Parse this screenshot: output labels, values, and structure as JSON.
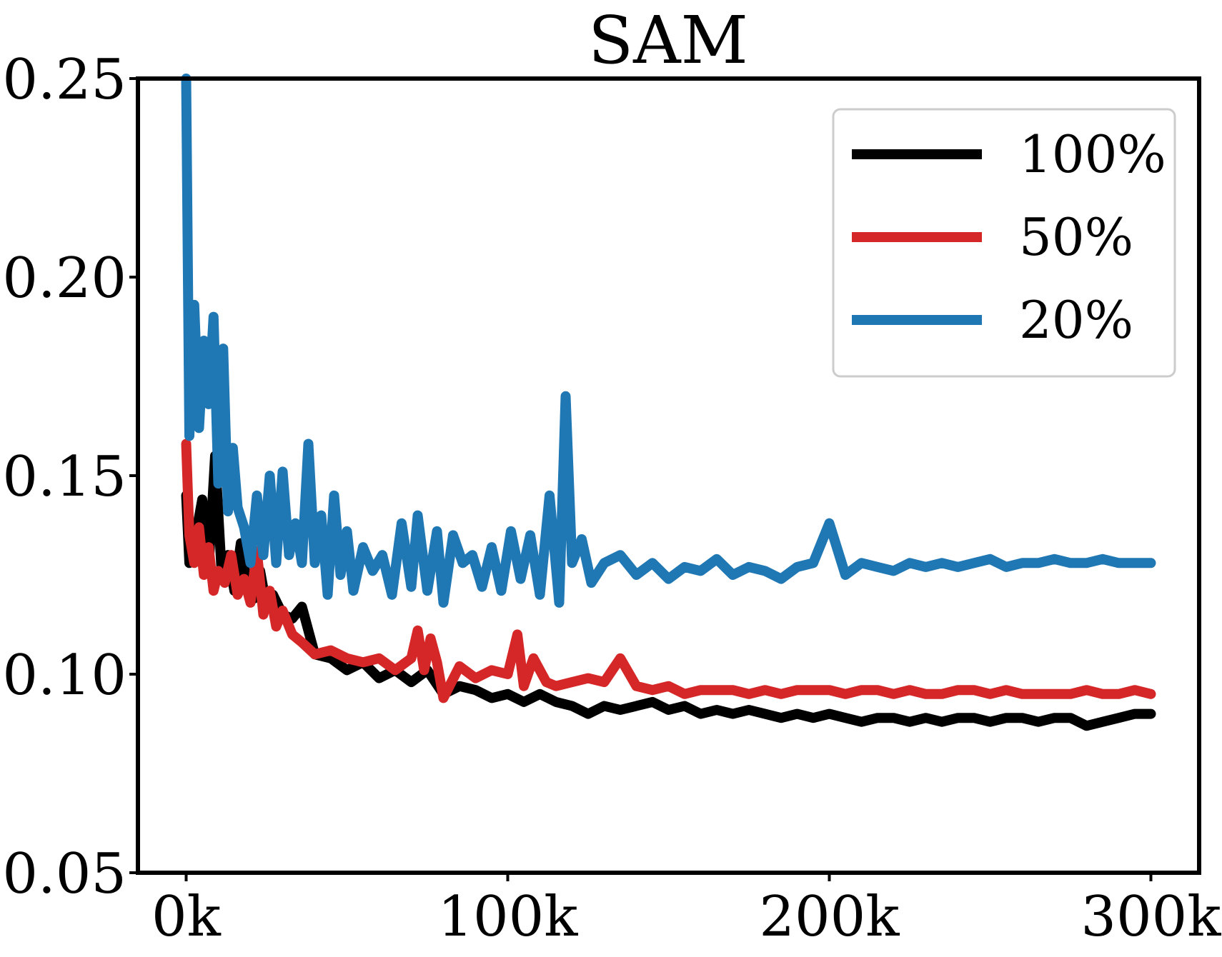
{
  "chart_data": {
    "type": "line",
    "title": "SAM",
    "xlabel": "",
    "ylabel": "",
    "xlim": [
      -15000,
      315000
    ],
    "ylim": [
      0.05,
      0.25
    ],
    "x_ticks": [
      0,
      100000,
      200000,
      300000
    ],
    "x_tick_labels": [
      "0k",
      "100k",
      "200k",
      "300k"
    ],
    "y_ticks": [
      0.05,
      0.1,
      0.15,
      0.2,
      0.25
    ],
    "y_tick_labels": [
      "0.05",
      "0.10",
      "0.15",
      "0.20",
      "0.25"
    ],
    "grid": false,
    "legend_position": "top-right",
    "series": [
      {
        "name": "100%",
        "color": "#000000",
        "x": [
          0,
          1000,
          3000,
          5000,
          7000,
          9000,
          11000,
          13000,
          15000,
          17000,
          19000,
          21000,
          23000,
          25000,
          27000,
          30000,
          33000,
          36000,
          40000,
          45000,
          50000,
          55000,
          60000,
          65000,
          70000,
          75000,
          80000,
          85000,
          90000,
          95000,
          100000,
          105000,
          110000,
          115000,
          120000,
          125000,
          130000,
          135000,
          140000,
          145000,
          150000,
          155000,
          160000,
          165000,
          170000,
          175000,
          180000,
          185000,
          190000,
          195000,
          200000,
          205000,
          210000,
          215000,
          220000,
          225000,
          230000,
          235000,
          240000,
          245000,
          250000,
          255000,
          260000,
          265000,
          270000,
          275000,
          280000,
          285000,
          290000,
          295000,
          300000
        ],
        "values": [
          0.145,
          0.128,
          0.135,
          0.144,
          0.127,
          0.155,
          0.126,
          0.13,
          0.121,
          0.133,
          0.122,
          0.119,
          0.126,
          0.117,
          0.12,
          0.115,
          0.114,
          0.117,
          0.105,
          0.104,
          0.101,
          0.103,
          0.099,
          0.101,
          0.098,
          0.101,
          0.095,
          0.097,
          0.096,
          0.094,
          0.095,
          0.093,
          0.095,
          0.093,
          0.092,
          0.09,
          0.092,
          0.091,
          0.092,
          0.093,
          0.091,
          0.092,
          0.09,
          0.091,
          0.09,
          0.091,
          0.09,
          0.089,
          0.09,
          0.089,
          0.09,
          0.089,
          0.088,
          0.089,
          0.089,
          0.088,
          0.089,
          0.088,
          0.089,
          0.089,
          0.088,
          0.089,
          0.089,
          0.088,
          0.089,
          0.089,
          0.087,
          0.088,
          0.089,
          0.09,
          0.09
        ]
      },
      {
        "name": "50%",
        "color": "#d62728",
        "x": [
          0,
          1000,
          2500,
          4000,
          5500,
          7000,
          8500,
          10000,
          12000,
          14000,
          16000,
          18000,
          20000,
          22000,
          24000,
          26000,
          28000,
          30000,
          33000,
          36000,
          40000,
          45000,
          50000,
          55000,
          60000,
          65000,
          70000,
          72000,
          74000,
          76000,
          78000,
          80000,
          85000,
          90000,
          95000,
          100000,
          103000,
          105000,
          108000,
          112000,
          115000,
          120000,
          125000,
          130000,
          135000,
          140000,
          145000,
          150000,
          155000,
          160000,
          165000,
          170000,
          175000,
          180000,
          185000,
          190000,
          195000,
          200000,
          205000,
          210000,
          215000,
          220000,
          225000,
          230000,
          235000,
          240000,
          245000,
          250000,
          255000,
          260000,
          265000,
          270000,
          275000,
          280000,
          285000,
          290000,
          295000,
          300000
        ],
        "values": [
          0.158,
          0.135,
          0.128,
          0.137,
          0.125,
          0.132,
          0.121,
          0.126,
          0.123,
          0.13,
          0.12,
          0.124,
          0.118,
          0.131,
          0.115,
          0.121,
          0.112,
          0.116,
          0.11,
          0.108,
          0.105,
          0.106,
          0.104,
          0.103,
          0.104,
          0.101,
          0.104,
          0.111,
          0.101,
          0.109,
          0.103,
          0.094,
          0.102,
          0.099,
          0.101,
          0.1,
          0.11,
          0.097,
          0.104,
          0.098,
          0.097,
          0.098,
          0.099,
          0.098,
          0.104,
          0.097,
          0.096,
          0.097,
          0.095,
          0.096,
          0.096,
          0.096,
          0.095,
          0.096,
          0.095,
          0.096,
          0.096,
          0.096,
          0.095,
          0.096,
          0.096,
          0.095,
          0.096,
          0.095,
          0.095,
          0.096,
          0.096,
          0.095,
          0.096,
          0.095,
          0.095,
          0.095,
          0.095,
          0.096,
          0.095,
          0.095,
          0.096,
          0.095
        ]
      },
      {
        "name": "20%",
        "color": "#1f77b4",
        "x": [
          0,
          1000,
          2500,
          4000,
          5500,
          7000,
          8500,
          10000,
          11500,
          13000,
          14500,
          16000,
          18000,
          20000,
          22000,
          24000,
          26000,
          28000,
          30000,
          32000,
          34000,
          36000,
          38000,
          40000,
          42000,
          44000,
          46000,
          48000,
          50000,
          52000,
          55000,
          58000,
          61000,
          64000,
          67000,
          70000,
          72000,
          75000,
          78000,
          80000,
          83000,
          86000,
          89000,
          92000,
          95000,
          98000,
          101000,
          104000,
          107000,
          110000,
          113000,
          116000,
          118000,
          120000,
          123000,
          126000,
          130000,
          135000,
          140000,
          145000,
          150000,
          155000,
          160000,
          165000,
          170000,
          175000,
          180000,
          185000,
          190000,
          195000,
          200000,
          205000,
          210000,
          215000,
          220000,
          225000,
          230000,
          235000,
          240000,
          245000,
          250000,
          255000,
          260000,
          265000,
          270000,
          275000,
          280000,
          285000,
          290000,
          295000,
          300000
        ],
        "values": [
          0.25,
          0.16,
          0.193,
          0.162,
          0.184,
          0.168,
          0.19,
          0.148,
          0.182,
          0.141,
          0.157,
          0.142,
          0.137,
          0.128,
          0.145,
          0.13,
          0.15,
          0.128,
          0.151,
          0.13,
          0.138,
          0.128,
          0.158,
          0.128,
          0.14,
          0.12,
          0.145,
          0.125,
          0.136,
          0.121,
          0.132,
          0.126,
          0.13,
          0.12,
          0.138,
          0.122,
          0.14,
          0.121,
          0.136,
          0.118,
          0.135,
          0.128,
          0.13,
          0.122,
          0.132,
          0.121,
          0.136,
          0.124,
          0.135,
          0.12,
          0.145,
          0.118,
          0.17,
          0.128,
          0.134,
          0.123,
          0.128,
          0.13,
          0.125,
          0.128,
          0.124,
          0.127,
          0.126,
          0.129,
          0.125,
          0.127,
          0.126,
          0.124,
          0.127,
          0.128,
          0.138,
          0.125,
          0.128,
          0.127,
          0.126,
          0.128,
          0.127,
          0.128,
          0.127,
          0.128,
          0.129,
          0.127,
          0.128,
          0.128,
          0.129,
          0.128,
          0.128,
          0.129,
          0.128,
          0.128,
          0.128
        ]
      }
    ]
  }
}
